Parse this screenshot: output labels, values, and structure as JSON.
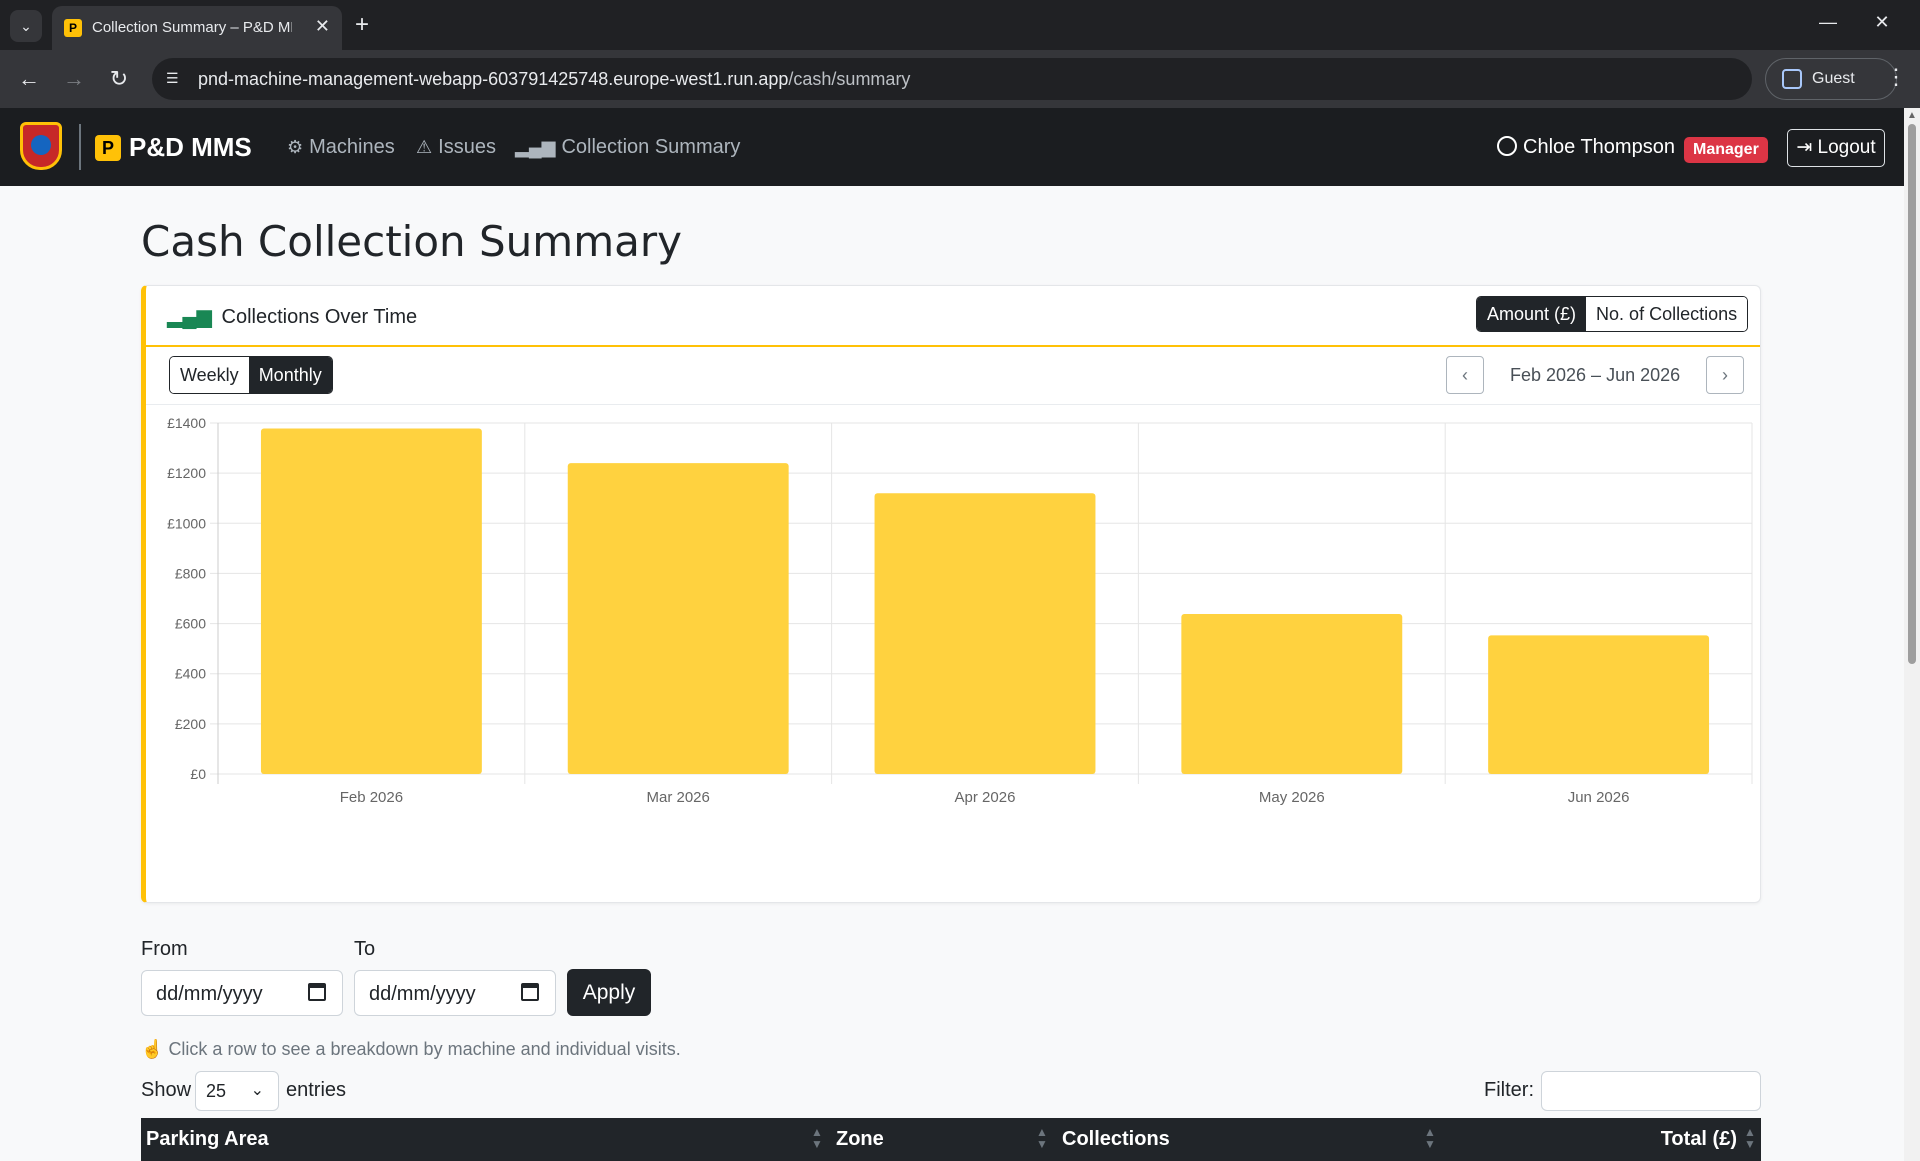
{
  "browser": {
    "tab_title": "Collection Summary – P&D MM",
    "url_host": "pnd-machine-management-webapp-603791425748.europe-west1.run.app",
    "url_path": "/cash/summary",
    "profile": "Guest"
  },
  "navbar": {
    "brand": "P&D MMS",
    "brand_letter": "P",
    "links": [
      {
        "label": "Machines",
        "icon": "cpu-icon"
      },
      {
        "label": "Issues",
        "icon": "warning-icon"
      },
      {
        "label": "Collection Summary",
        "icon": "bar-chart-icon"
      }
    ],
    "user_name": "Chloe Thompson",
    "role_badge": "Manager",
    "logout_label": "Logout"
  },
  "page": {
    "title": "Cash Collection Summary"
  },
  "card": {
    "title": "Collections Over Time",
    "metric_toggle": [
      "Amount (£)",
      "No. of Collections"
    ],
    "metric_active": "Amount (£)",
    "period_toggle": [
      "Weekly",
      "Monthly"
    ],
    "period_active": "Monthly",
    "range_label": "Feb 2026 – Jun 2026"
  },
  "chart_data": {
    "type": "bar",
    "categories": [
      "Feb 2026",
      "Mar 2026",
      "Apr 2026",
      "May 2026",
      "Jun 2026"
    ],
    "values": [
      1378,
      1240,
      1120,
      638,
      553
    ],
    "y_ticks": [
      "£0",
      "£200",
      "£400",
      "£600",
      "£800",
      "£1000",
      "£1200",
      "£1400"
    ],
    "ylim": [
      0,
      1400
    ],
    "bar_color": "#ffd23f",
    "grid": true
  },
  "filters": {
    "from_label": "From",
    "to_label": "To",
    "from_placeholder": "dd/mm/yyyy",
    "to_placeholder": "dd/mm/yyyy",
    "apply_label": "Apply",
    "hint": "Click a row to see a breakdown by machine and individual visits.",
    "show_label": "Show",
    "page_size": "25",
    "entries_label": "entries",
    "filter_label": "Filter:"
  },
  "table": {
    "columns": [
      "Parking Area",
      "Zone",
      "Collections",
      "Total (£)"
    ]
  },
  "colors": {
    "accent": "#ffc107",
    "dark": "#212529",
    "danger": "#dc3545"
  }
}
